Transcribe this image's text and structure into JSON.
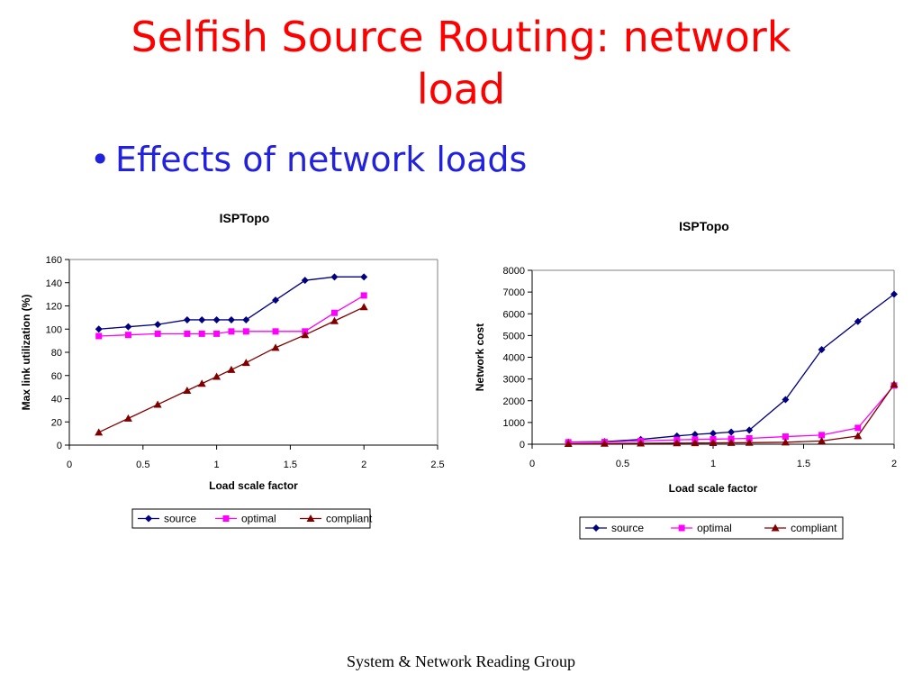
{
  "slide": {
    "title_line1": "Selfish Source Routing: network",
    "title_line2": "load",
    "bullet": "Effects of network loads",
    "footer": "System & Network Reading Group"
  },
  "colors": {
    "title": "#ff0000",
    "bullet": "#2222dd",
    "source": "#000080",
    "optimal": "#ff00ff",
    "compliant": "#800000"
  },
  "chart_data": [
    {
      "type": "line",
      "title": "ISPTopo",
      "xlabel": "Load scale factor",
      "ylabel": "Max link utilization (%)",
      "xlim": [
        0,
        2.5
      ],
      "ylim": [
        0,
        160
      ],
      "xticks": [
        0,
        0.5,
        1,
        1.5,
        2,
        2.5
      ],
      "xtick_labels": [
        "0",
        "0.5",
        "1",
        "1.5",
        "2",
        "2.5"
      ],
      "yticks": [
        0,
        20,
        40,
        60,
        80,
        100,
        120,
        140,
        160
      ],
      "ytick_labels": [
        "0",
        "20",
        "40",
        "60",
        "80",
        "100",
        "120",
        "140",
        "160"
      ],
      "grid": false,
      "legend_position": "bottom",
      "x": [
        0.2,
        0.4,
        0.6,
        0.8,
        0.9,
        1.0,
        1.1,
        1.2,
        1.4,
        1.6,
        1.8,
        2.0
      ],
      "series": [
        {
          "name": "source",
          "marker": "diamond",
          "color": "#000080",
          "values": [
            100,
            102,
            104,
            108,
            108,
            108,
            108,
            108,
            125,
            142,
            145,
            145
          ]
        },
        {
          "name": "optimal",
          "marker": "square",
          "color": "#ff00ff",
          "values": [
            94,
            95,
            96,
            96,
            96,
            96,
            98,
            98,
            98,
            98,
            114,
            129
          ]
        },
        {
          "name": "compliant",
          "marker": "triangle",
          "color": "#800000",
          "values": [
            11,
            23,
            35,
            47,
            53,
            59,
            65,
            71,
            84,
            95,
            107,
            119
          ]
        }
      ]
    },
    {
      "type": "line",
      "title": "ISPTopo",
      "xlabel": "Load scale factor",
      "ylabel": "Network cost",
      "xlim": [
        0,
        2
      ],
      "ylim": [
        0,
        8000
      ],
      "xticks": [
        0,
        0.5,
        1,
        1.5,
        2
      ],
      "xtick_labels": [
        "0",
        "0.5",
        "1",
        "1.5",
        "2"
      ],
      "yticks": [
        0,
        1000,
        2000,
        3000,
        4000,
        5000,
        6000,
        7000,
        8000
      ],
      "ytick_labels": [
        "0",
        "1000",
        "2000",
        "3000",
        "4000",
        "5000",
        "6000",
        "7000",
        "8000"
      ],
      "grid": false,
      "legend_position": "bottom",
      "x": [
        0.2,
        0.4,
        0.6,
        0.8,
        0.9,
        1.0,
        1.1,
        1.2,
        1.4,
        1.6,
        1.8,
        2.0
      ],
      "series": [
        {
          "name": "source",
          "marker": "diamond",
          "color": "#000080",
          "values": [
            100,
            120,
            220,
            380,
            450,
            500,
            560,
            650,
            2050,
            4350,
            5650,
            6900
          ]
        },
        {
          "name": "optimal",
          "marker": "square",
          "color": "#ff00ff",
          "values": [
            90,
            100,
            150,
            200,
            220,
            230,
            250,
            270,
            350,
            420,
            750,
            2700
          ]
        },
        {
          "name": "compliant",
          "marker": "triangle",
          "color": "#800000",
          "values": [
            20,
            30,
            40,
            50,
            55,
            60,
            65,
            70,
            90,
            150,
            380,
            2750
          ]
        }
      ]
    }
  ]
}
